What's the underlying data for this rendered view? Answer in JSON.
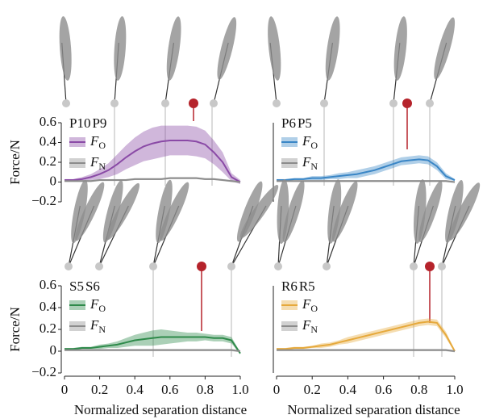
{
  "chart_data": [
    {
      "type": "line",
      "labels": [
        {
          "text": "P10",
          "color": "#bbbbbb"
        },
        {
          "text": "P9",
          "color": "#222222"
        }
      ],
      "ylabel": "Force/N",
      "x": [
        0,
        0.05,
        0.1,
        0.15,
        0.2,
        0.25,
        0.3,
        0.35,
        0.4,
        0.45,
        0.5,
        0.55,
        0.6,
        0.65,
        0.7,
        0.75,
        0.8,
        0.85,
        0.9,
        0.95,
        1
      ],
      "xlim": [
        0,
        1
      ],
      "ylim": [
        -0.2,
        0.6
      ],
      "yticks": [
        {
          "value": -0.2,
          "label": "−0.2"
        },
        0,
        0.2,
        0.4,
        0.6
      ],
      "series": [
        {
          "name": "F",
          "subscript": "O",
          "color": "#8a4aa6",
          "values": [
            0.02,
            0.02,
            0.03,
            0.05,
            0.08,
            0.12,
            0.18,
            0.25,
            0.31,
            0.36,
            0.39,
            0.41,
            0.42,
            0.42,
            0.42,
            0.41,
            0.38,
            0.3,
            0.2,
            0.05,
            0.0
          ],
          "upper": [
            0.03,
            0.03,
            0.05,
            0.08,
            0.13,
            0.19,
            0.28,
            0.37,
            0.45,
            0.51,
            0.55,
            0.57,
            0.57,
            0.57,
            0.57,
            0.56,
            0.52,
            0.42,
            0.3,
            0.09,
            0.02
          ],
          "lower": [
            0.01,
            0.01,
            0.01,
            0.02,
            0.03,
            0.05,
            0.08,
            0.13,
            0.17,
            0.21,
            0.23,
            0.25,
            0.27,
            0.27,
            0.27,
            0.26,
            0.24,
            0.18,
            0.1,
            0.01,
            -0.02
          ]
        },
        {
          "name": "F",
          "subscript": "N",
          "color": "#8c8c8c",
          "values": [
            0.01,
            0.01,
            0.01,
            0.01,
            0.02,
            0.02,
            0.02,
            0.02,
            0.03,
            0.03,
            0.03,
            0.03,
            0.04,
            0.04,
            0.04,
            0.04,
            0.03,
            0.03,
            0.02,
            0.01,
            0.0
          ],
          "upper": [
            0.02,
            0.02,
            0.02,
            0.02,
            0.03,
            0.03,
            0.03,
            0.03,
            0.04,
            0.04,
            0.04,
            0.04,
            0.05,
            0.05,
            0.05,
            0.05,
            0.04,
            0.04,
            0.03,
            0.02,
            0.01
          ],
          "lower": [
            0,
            0,
            0,
            0,
            0.01,
            0.01,
            0.01,
            0.01,
            0.02,
            0.02,
            0.02,
            0.02,
            0.03,
            0.03,
            0.03,
            0.03,
            0.02,
            0.02,
            0.01,
            0,
            -0.01
          ]
        }
      ]
    },
    {
      "type": "line",
      "labels": [
        {
          "text": "P6",
          "color": "#bbbbbb"
        },
        {
          "text": "P5",
          "color": "#222222"
        }
      ],
      "x": [
        0,
        0.05,
        0.1,
        0.15,
        0.2,
        0.25,
        0.3,
        0.35,
        0.4,
        0.45,
        0.5,
        0.55,
        0.6,
        0.65,
        0.7,
        0.75,
        0.8,
        0.85,
        0.9,
        0.95,
        1
      ],
      "xlim": [
        0,
        1
      ],
      "ylim": [
        -0.2,
        0.6
      ],
      "series": [
        {
          "name": "F",
          "subscript": "O",
          "color": "#3a86c6",
          "values": [
            0.02,
            0.02,
            0.03,
            0.03,
            0.04,
            0.04,
            0.05,
            0.06,
            0.07,
            0.08,
            0.1,
            0.12,
            0.15,
            0.18,
            0.21,
            0.22,
            0.23,
            0.22,
            0.16,
            0.06,
            0.02
          ],
          "upper": [
            0.03,
            0.03,
            0.04,
            0.04,
            0.06,
            0.06,
            0.07,
            0.09,
            0.1,
            0.12,
            0.14,
            0.16,
            0.19,
            0.22,
            0.25,
            0.26,
            0.27,
            0.26,
            0.2,
            0.09,
            0.03
          ],
          "lower": [
            0.01,
            0.01,
            0.02,
            0.02,
            0.02,
            0.02,
            0.03,
            0.03,
            0.04,
            0.04,
            0.06,
            0.08,
            0.11,
            0.14,
            0.17,
            0.18,
            0.19,
            0.18,
            0.12,
            0.03,
            0.01
          ]
        },
        {
          "name": "F",
          "subscript": "N",
          "color": "#8c8c8c",
          "values": [
            0.01,
            0.01,
            0.01,
            0.01,
            0.01,
            0.01,
            0.01,
            0.01,
            0.01,
            0.01,
            0.01,
            0.01,
            0.01,
            0.01,
            0.01,
            0.01,
            0.01,
            0.01,
            0.01,
            0.01,
            0.0
          ],
          "upper": [
            0.02,
            0.02,
            0.02,
            0.02,
            0.02,
            0.02,
            0.02,
            0.02,
            0.02,
            0.02,
            0.02,
            0.02,
            0.02,
            0.02,
            0.02,
            0.02,
            0.02,
            0.02,
            0.02,
            0.02,
            0.01
          ],
          "lower": [
            0,
            0,
            0,
            0,
            0,
            0,
            0,
            0,
            0,
            0,
            0,
            0,
            0,
            0,
            0,
            0,
            0,
            0,
            0,
            0,
            -0.01
          ]
        }
      ]
    },
    {
      "type": "line",
      "labels": [
        {
          "text": "S5",
          "color": "#bbbbbb"
        },
        {
          "text": "S6",
          "color": "#222222"
        }
      ],
      "ylabel": "Force/N",
      "xlabel": "Normalized separation distance",
      "x": [
        0,
        0.05,
        0.1,
        0.15,
        0.2,
        0.25,
        0.3,
        0.35,
        0.4,
        0.45,
        0.5,
        0.55,
        0.6,
        0.65,
        0.7,
        0.75,
        0.8,
        0.85,
        0.9,
        0.95,
        1
      ],
      "xlim": [
        0,
        1
      ],
      "xticks": [
        0,
        0.2,
        0.4,
        0.6,
        0.8,
        {
          "value": 1,
          "label": "1.0"
        }
      ],
      "ylim": [
        -0.2,
        0.6
      ],
      "yticks": [
        {
          "value": -0.2,
          "label": "−0.2"
        },
        0,
        0.2,
        0.4,
        0.6
      ],
      "series": [
        {
          "name": "F",
          "subscript": "O",
          "color": "#2e8a4a",
          "values": [
            0.02,
            0.02,
            0.03,
            0.03,
            0.04,
            0.05,
            0.06,
            0.08,
            0.1,
            0.11,
            0.12,
            0.13,
            0.13,
            0.13,
            0.13,
            0.13,
            0.13,
            0.12,
            0.12,
            0.1,
            -0.02
          ],
          "upper": [
            0.03,
            0.03,
            0.04,
            0.04,
            0.06,
            0.07,
            0.09,
            0.12,
            0.15,
            0.17,
            0.19,
            0.2,
            0.19,
            0.18,
            0.17,
            0.17,
            0.16,
            0.15,
            0.15,
            0.13,
            -0.01
          ],
          "lower": [
            0.01,
            0.01,
            0.02,
            0.02,
            0.02,
            0.03,
            0.03,
            0.04,
            0.05,
            0.05,
            0.05,
            0.06,
            0.07,
            0.08,
            0.09,
            0.09,
            0.1,
            0.09,
            0.09,
            0.07,
            -0.03
          ]
        },
        {
          "name": "F",
          "subscript": "N",
          "color": "#8c8c8c",
          "values": [
            0.01,
            0.01,
            0.01,
            0.01,
            0.01,
            0.01,
            0.01,
            0.01,
            0.01,
            0.01,
            0.01,
            0.01,
            0.01,
            0.01,
            0.01,
            0.01,
            0.01,
            0.01,
            0.01,
            0.01,
            0.0
          ],
          "upper": [
            0.02,
            0.02,
            0.02,
            0.02,
            0.02,
            0.02,
            0.02,
            0.02,
            0.02,
            0.02,
            0.02,
            0.02,
            0.02,
            0.02,
            0.02,
            0.02,
            0.02,
            0.02,
            0.02,
            0.02,
            0.01
          ],
          "lower": [
            0,
            0,
            0,
            0,
            0,
            0,
            0,
            0,
            0,
            0,
            0,
            0,
            0,
            0,
            0,
            0,
            0,
            0,
            0,
            0,
            -0.01
          ]
        }
      ]
    },
    {
      "type": "line",
      "labels": [
        {
          "text": "R6",
          "color": "#bbbbbb"
        },
        {
          "text": "R5",
          "color": "#222222"
        }
      ],
      "xlabel": "Normalized separation distance",
      "x": [
        0,
        0.05,
        0.1,
        0.15,
        0.2,
        0.25,
        0.3,
        0.35,
        0.4,
        0.45,
        0.5,
        0.55,
        0.6,
        0.65,
        0.7,
        0.75,
        0.8,
        0.85,
        0.9,
        0.95,
        1
      ],
      "xlim": [
        0,
        1
      ],
      "xticks": [
        0,
        0.2,
        0.4,
        0.6,
        0.8,
        {
          "value": 1,
          "label": "1.0"
        }
      ],
      "ylim": [
        -0.2,
        0.6
      ],
      "series": [
        {
          "name": "F",
          "subscript": "O",
          "color": "#e6a93c",
          "values": [
            0.02,
            0.02,
            0.03,
            0.03,
            0.04,
            0.05,
            0.06,
            0.08,
            0.1,
            0.12,
            0.14,
            0.16,
            0.18,
            0.2,
            0.22,
            0.24,
            0.26,
            0.27,
            0.26,
            0.15,
            0.0
          ],
          "upper": [
            0.03,
            0.03,
            0.04,
            0.04,
            0.05,
            0.07,
            0.08,
            0.1,
            0.13,
            0.15,
            0.17,
            0.19,
            0.21,
            0.23,
            0.25,
            0.27,
            0.29,
            0.3,
            0.29,
            0.18,
            0.01
          ],
          "lower": [
            0.01,
            0.01,
            0.02,
            0.02,
            0.03,
            0.03,
            0.04,
            0.06,
            0.07,
            0.09,
            0.11,
            0.13,
            0.15,
            0.17,
            0.19,
            0.21,
            0.23,
            0.24,
            0.23,
            0.12,
            -0.01
          ]
        },
        {
          "name": "F",
          "subscript": "N",
          "color": "#8c8c8c",
          "values": [
            0.01,
            0.01,
            0.01,
            0.01,
            0.01,
            0.01,
            0.01,
            0.01,
            0.01,
            0.01,
            0.01,
            0.01,
            0.01,
            0.01,
            0.01,
            0.01,
            0.01,
            0.01,
            0.01,
            0.01,
            0.0
          ],
          "upper": [
            0.02,
            0.02,
            0.02,
            0.02,
            0.02,
            0.02,
            0.02,
            0.02,
            0.02,
            0.02,
            0.02,
            0.02,
            0.02,
            0.02,
            0.02,
            0.02,
            0.02,
            0.02,
            0.02,
            0.02,
            0.01
          ],
          "lower": [
            0,
            0,
            0,
            0,
            0,
            0,
            0,
            0,
            0,
            0,
            0,
            0,
            0,
            0,
            0,
            0,
            0,
            0,
            0,
            0,
            -0.01
          ]
        }
      ]
    }
  ]
}
